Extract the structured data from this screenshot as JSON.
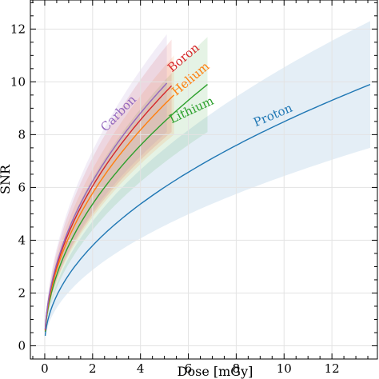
{
  "chart_data": {
    "type": "line",
    "title": "",
    "xlabel": "Dose [mGy]",
    "ylabel": "SNR",
    "xlim": [
      -0.6,
      13.9
    ],
    "ylim": [
      -0.5,
      13.1
    ],
    "xticks": [
      0,
      2,
      4,
      6,
      8,
      10,
      12
    ],
    "yticks": [
      0,
      2,
      4,
      6,
      8,
      10,
      12
    ],
    "grid": true,
    "legend": "none (series labels written along curves)",
    "series": [
      {
        "name": "Proton",
        "color": "#1f77b4",
        "x_end": 13.6,
        "snr_at_end": 9.9,
        "band_upper_at_end": 12.3,
        "band_lower_at_end": 7.5,
        "label_at": [
          9.6,
          8.6
        ],
        "label_angle": -23
      },
      {
        "name": "Lithium",
        "color": "#2ca02c",
        "x_end": 6.8,
        "snr_at_end": 9.9,
        "band_upper_at_end": 11.7,
        "band_lower_at_end": 8.1,
        "label_at": [
          6.2,
          8.8
        ],
        "label_angle": -25
      },
      {
        "name": "Helium",
        "color": "#ff7f0e",
        "x_end": 5.4,
        "snr_at_end": 9.5,
        "band_upper_at_end": 11.0,
        "band_lower_at_end": 8.0,
        "label_at": [
          6.2,
          10.0
        ],
        "label_angle": -40
      },
      {
        "name": "Boron",
        "color": "#d62728",
        "x_end": 5.3,
        "snr_at_end": 9.85,
        "band_upper_at_end": 11.6,
        "band_lower_at_end": 8.1,
        "label_at": [
          5.9,
          10.8
        ],
        "label_angle": -40
      },
      {
        "name": "Carbon",
        "color": "#9467bd",
        "x_end": 5.1,
        "snr_at_end": 9.95,
        "band_upper_at_end": 11.8,
        "band_lower_at_end": 8.1,
        "label_at": [
          3.2,
          8.7
        ],
        "label_angle": -46
      }
    ]
  }
}
